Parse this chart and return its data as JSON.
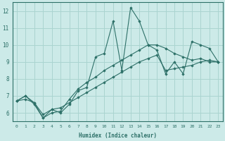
{
  "xlabel": "Humidex (Indice chaleur)",
  "bg_color": "#cceae8",
  "grid_color": "#aad4d0",
  "line_color": "#2d7068",
  "marker_color": "#2d7068",
  "xlim": [
    -0.5,
    23.5
  ],
  "ylim": [
    5.5,
    12.5
  ],
  "xticks": [
    0,
    1,
    2,
    3,
    4,
    5,
    6,
    7,
    8,
    9,
    10,
    11,
    12,
    13,
    14,
    15,
    16,
    17,
    18,
    19,
    20,
    21,
    22,
    23
  ],
  "yticks": [
    6,
    7,
    8,
    9,
    10,
    11,
    12
  ],
  "series": [
    [
      6.7,
      7.0,
      6.6,
      5.7,
      6.2,
      6.0,
      6.5,
      7.3,
      7.5,
      9.3,
      9.5,
      11.4,
      8.5,
      12.2,
      11.4,
      10.0,
      9.7,
      8.3,
      9.0,
      8.3,
      10.2,
      10.0,
      9.8,
      9.0
    ],
    [
      6.7,
      7.0,
      6.5,
      5.7,
      6.0,
      6.1,
      6.8,
      7.4,
      7.8,
      8.1,
      8.5,
      8.8,
      9.1,
      9.4,
      9.7,
      10.0,
      10.0,
      9.8,
      9.5,
      9.3,
      9.1,
      9.2,
      9.0,
      9.0
    ],
    [
      6.7,
      6.8,
      6.6,
      5.9,
      6.2,
      6.3,
      6.6,
      6.9,
      7.2,
      7.5,
      7.8,
      8.1,
      8.4,
      8.7,
      9.0,
      9.2,
      9.4,
      8.5,
      8.6,
      8.7,
      8.8,
      9.0,
      9.1,
      9.0
    ]
  ]
}
